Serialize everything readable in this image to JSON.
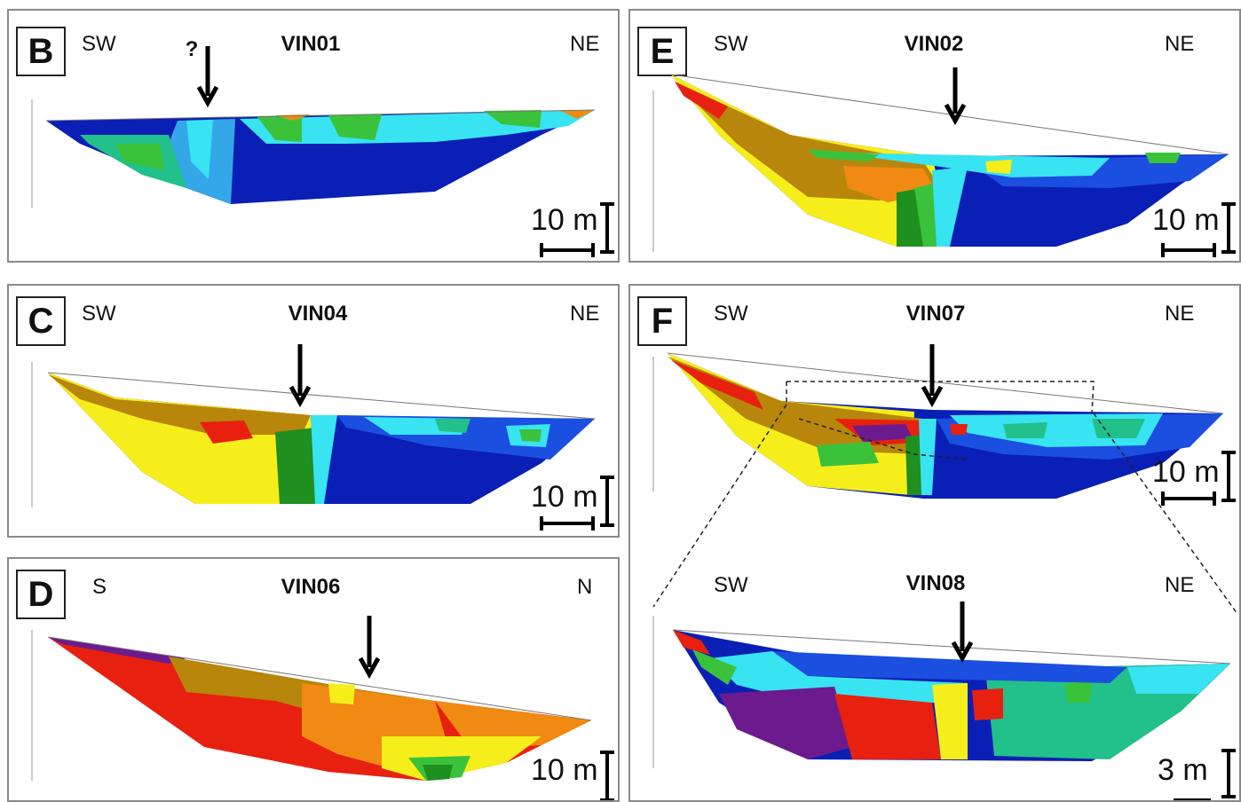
{
  "panels": {
    "B": {
      "label": "B",
      "left_dir": "SW",
      "title": "VIN01",
      "right_dir": "NE",
      "scale": "10 m",
      "marker": "?"
    },
    "C": {
      "label": "C",
      "left_dir": "SW",
      "title": "VIN04",
      "right_dir": "NE",
      "scale": "10 m"
    },
    "D": {
      "label": "D",
      "left_dir": "S",
      "title": "VIN06",
      "right_dir": "N",
      "scale": "10 m"
    },
    "E": {
      "label": "E",
      "left_dir": "SW",
      "title": "VIN02",
      "right_dir": "NE",
      "scale": "10 m"
    },
    "F": {
      "label": "F",
      "left_dir": "SW",
      "title": "VIN07",
      "right_dir": "NE",
      "scale": "10 m",
      "inset": {
        "left_dir": "SW",
        "title": "VIN08",
        "right_dir": "NE",
        "scale": "3 m"
      }
    }
  },
  "colors": {
    "dark_blue": "#0a1fb5",
    "blue": "#1b4fe0",
    "light_blue": "#34a7e8",
    "cyan": "#38e3f2",
    "teal": "#22c08a",
    "green": "#3bc23b",
    "dark_green": "#1f8f1f",
    "yellow": "#f6ee1a",
    "olive": "#b8860b",
    "orange": "#f08a12",
    "red": "#e8200f",
    "purple": "#6b1b8e"
  }
}
